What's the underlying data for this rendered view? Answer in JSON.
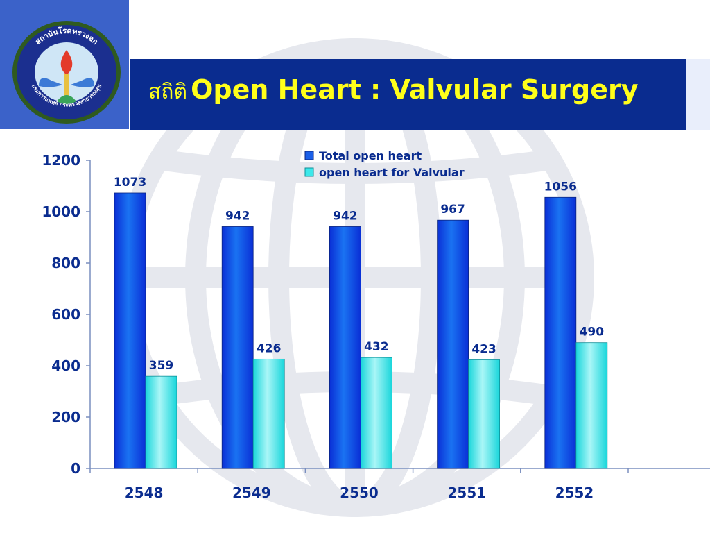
{
  "title": {
    "thai": "สถิติ",
    "main": "Open Heart : Valvular Surgery"
  },
  "logo": {
    "icon": "medical-emblem-icon",
    "text_top": "สถาบันโรคทรวงอก",
    "text_bottom": "กรมการแพทย์ กระทรวงสาธารณสุข"
  },
  "colors": {
    "title_bar": "#0a2c8f",
    "title_text": "#ffff1a",
    "corner_square": "#3b62c9",
    "series_1": "#0d47e6",
    "series_2": "#27e3e6",
    "text": "#0a2c8f"
  },
  "chart_data": {
    "type": "bar",
    "title": "",
    "xlabel": "",
    "ylabel": "",
    "categories": [
      "2548",
      "2549",
      "2550",
      "2551",
      "2552"
    ],
    "series": [
      {
        "name": "Total open heart",
        "values": [
          1073,
          942,
          942,
          967,
          1056
        ]
      },
      {
        "name": "open heart for Valvular",
        "values": [
          359,
          426,
          432,
          423,
          490
        ]
      }
    ],
    "ylim": [
      0,
      1200
    ],
    "yticks": [
      0,
      200,
      400,
      600,
      800,
      1000,
      1200
    ],
    "grid": false,
    "legend": "top-right",
    "data_labels": true
  }
}
